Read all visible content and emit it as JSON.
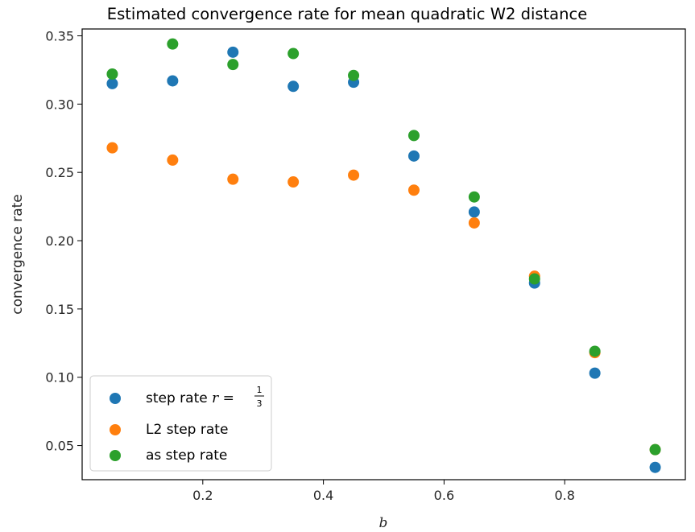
{
  "chart_data": {
    "type": "scatter",
    "title": "Estimated convergence rate for mean quadratic W2 distance",
    "xlabel": "b",
    "ylabel": "convergence rate",
    "xlim": [
      0.0,
      1.0
    ],
    "ylim": [
      0.025,
      0.355
    ],
    "x_ticks": [
      0.2,
      0.4,
      0.6,
      0.8
    ],
    "x_tick_labels": [
      "0.2",
      "0.4",
      "0.6",
      "0.8"
    ],
    "y_ticks": [
      0.05,
      0.1,
      0.15,
      0.2,
      0.25,
      0.3,
      0.35
    ],
    "y_tick_labels": [
      "0.05",
      "0.10",
      "0.15",
      "0.20",
      "0.25",
      "0.30",
      "0.35"
    ],
    "grid": false,
    "legend_position": "lower-left",
    "x": [
      0.05,
      0.15,
      0.25,
      0.35,
      0.45,
      0.55,
      0.65,
      0.75,
      0.85,
      0.95
    ],
    "series": [
      {
        "name": "step rate r = 1/3",
        "legend_prefix": "step rate ",
        "legend_math_var": "r",
        "legend_math_eq": " = ",
        "legend_frac_num": "1",
        "legend_frac_den": "3",
        "color": "#1f77b4",
        "values": [
          0.315,
          0.317,
          0.338,
          0.313,
          0.316,
          0.262,
          0.221,
          0.169,
          0.103,
          0.034
        ]
      },
      {
        "name": "L2 step rate",
        "color": "#ff7f0e",
        "values": [
          0.268,
          0.259,
          0.245,
          0.243,
          0.248,
          0.237,
          0.213,
          0.174,
          0.118,
          0.047
        ]
      },
      {
        "name": "as step rate",
        "color": "#2ca02c",
        "values": [
          0.322,
          0.344,
          0.329,
          0.337,
          0.321,
          0.277,
          0.232,
          0.172,
          0.119,
          0.047
        ]
      }
    ]
  }
}
